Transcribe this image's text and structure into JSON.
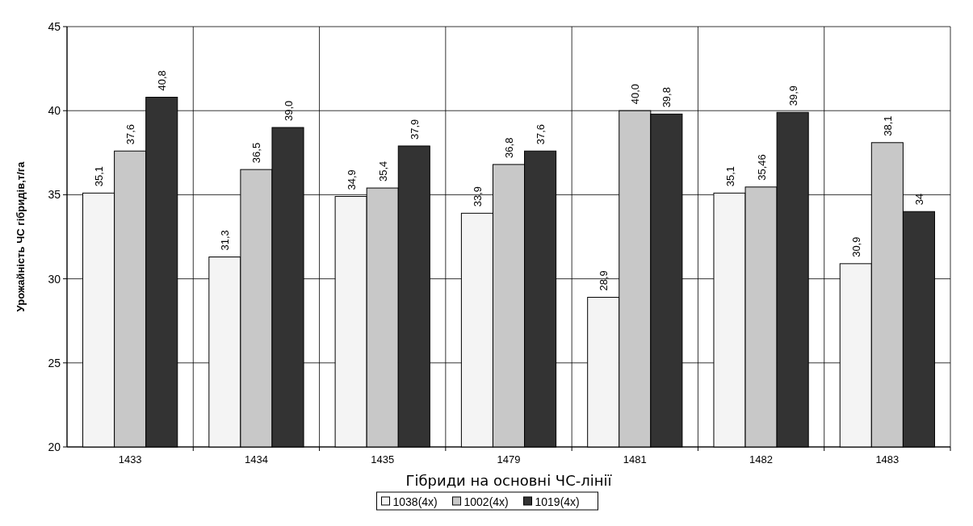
{
  "chart_data": {
    "type": "bar",
    "xlabel": "Гібриди на основні ЧС-лінії",
    "ylabel": "Урожайність ЧС гібридів,т/га",
    "categories": [
      "1433",
      "1434",
      "1435",
      "1479",
      "1481",
      "1482",
      "1483"
    ],
    "series": [
      {
        "name": "1038(4x)",
        "color": "#f4f4f4",
        "values": [
          35.1,
          31.3,
          34.9,
          33.9,
          28.9,
          35.1,
          30.9
        ],
        "value_labels": [
          "35,1",
          "31,3",
          "34,9",
          "33,9",
          "28,9",
          "35,1",
          "30,9"
        ]
      },
      {
        "name": "1002(4x)",
        "color": "#c8c8c8",
        "values": [
          37.6,
          36.5,
          35.4,
          36.8,
          40.0,
          35.46,
          38.1
        ],
        "value_labels": [
          "37,6",
          "36,5",
          "35,4",
          "36,8",
          "40,0",
          "35,46",
          "38,1"
        ]
      },
      {
        "name": "1019(4x)",
        "color": "#333333",
        "values": [
          40.8,
          39.0,
          37.9,
          37.6,
          39.8,
          39.9,
          34
        ],
        "value_labels": [
          "40,8",
          "39,0",
          "37,9",
          "37,6",
          "39,8",
          "39,9",
          "34"
        ]
      }
    ],
    "ylim": [
      20,
      45
    ],
    "yticks": [
      20,
      25,
      30,
      35,
      40,
      45
    ],
    "grid": true,
    "legend": "bottom"
  }
}
